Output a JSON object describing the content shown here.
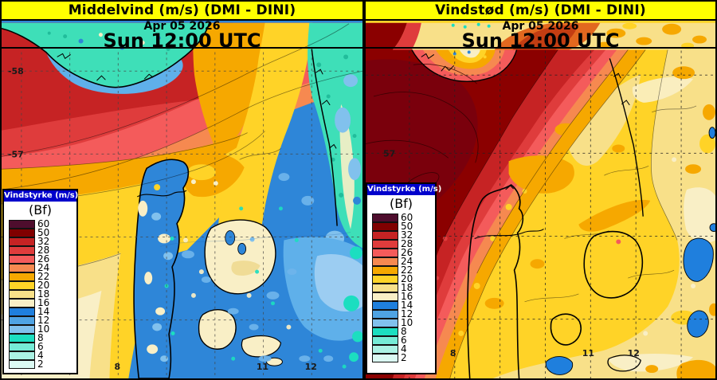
{
  "panels": {
    "left": {
      "title": "Middelvind (m/s) (DMI - DINI)",
      "date": "Apr 05 2026",
      "time": "Sun 12:00 UTC",
      "lat_labels": [
        "-58",
        "-57"
      ],
      "lon_labels": [
        "8",
        "11",
        "12"
      ]
    },
    "right": {
      "title": "Vindstød (m/s)  (DMI - DINI)",
      "date": "Apr 05 2026",
      "time": "Sun 12:00 UTC",
      "lat_labels": [
        "57"
      ],
      "lon_labels": [
        "8",
        "11",
        "12"
      ]
    }
  },
  "legend": {
    "header": "Vindstyrke (m/s)",
    "unit": "(Bf)",
    "header_bg": "#0000CC",
    "entries": [
      {
        "value": "60",
        "color": "#4E0D2D"
      },
      {
        "value": "50",
        "color": "#800000"
      },
      {
        "value": "32",
        "color": "#C62324"
      },
      {
        "value": "28",
        "color": "#DF3C3C"
      },
      {
        "value": "26",
        "color": "#F45B5B"
      },
      {
        "value": "24",
        "color": "#F68950"
      },
      {
        "value": "22",
        "color": "#F6A800"
      },
      {
        "value": "20",
        "color": "#FFD327"
      },
      {
        "value": "18",
        "color": "#F8E089"
      },
      {
        "value": "16",
        "color": "#F9EFC6"
      },
      {
        "value": "14",
        "color": "#1F7FDD"
      },
      {
        "value": "12",
        "color": "#4FA3E3"
      },
      {
        "value": "10",
        "color": "#81C1ED"
      },
      {
        "value": "8",
        "color": "#1CDEC0"
      },
      {
        "value": "6",
        "color": "#76EBD6"
      },
      {
        "value": "4",
        "color": "#ABF2E4"
      },
      {
        "value": "2",
        "color": "#DBFAF3"
      }
    ]
  },
  "colors": {
    "title_bar": "#FFFF00",
    "map_border": "#000000"
  }
}
